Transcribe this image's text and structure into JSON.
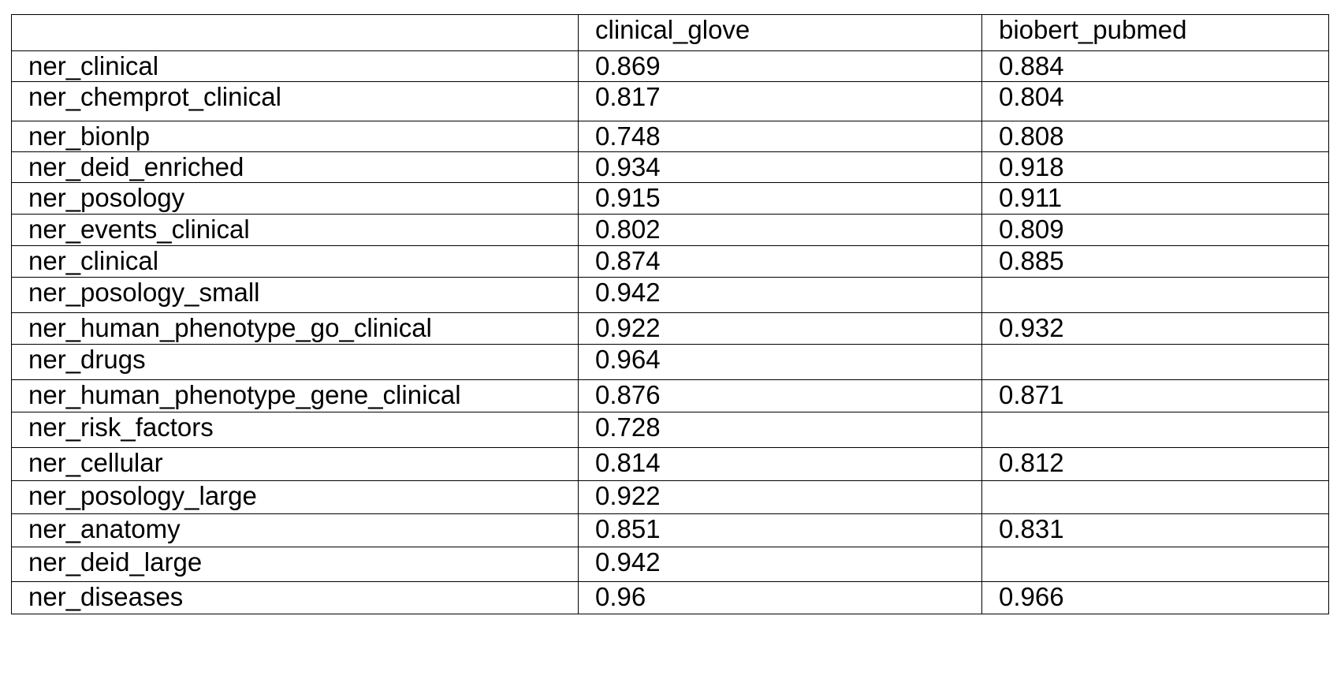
{
  "table": {
    "headers": [
      "",
      "clinical_glove",
      "biobert_pubmed"
    ],
    "rows": [
      [
        "ner_clinical",
        "0.869",
        "0.884"
      ],
      [
        "ner_chemprot_clinical",
        "0.817",
        "0.804"
      ],
      [
        "ner_bionlp",
        "0.748",
        "0.808"
      ],
      [
        "ner_deid_enriched",
        "0.934",
        "0.918"
      ],
      [
        "ner_posology",
        "0.915",
        "0.911"
      ],
      [
        "ner_events_clinical",
        "0.802",
        "0.809"
      ],
      [
        "ner_clinical",
        "0.874",
        "0.885"
      ],
      [
        "ner_posology_small",
        "0.942",
        ""
      ],
      [
        "ner_human_phenotype_go_clinical",
        "0.922",
        "0.932"
      ],
      [
        "ner_drugs",
        "0.964",
        ""
      ],
      [
        "ner_human_phenotype_gene_clinical",
        "0.876",
        "0.871"
      ],
      [
        "ner_risk_factors",
        "0.728",
        ""
      ],
      [
        "ner_cellular",
        "0.814",
        "0.812"
      ],
      [
        "ner_posology_large",
        "0.922",
        ""
      ],
      [
        "ner_anatomy",
        "0.851",
        "0.831"
      ],
      [
        "ner_deid_large",
        "0.942",
        ""
      ],
      [
        "ner_diseases",
        "0.96",
        "0.966"
      ]
    ]
  }
}
